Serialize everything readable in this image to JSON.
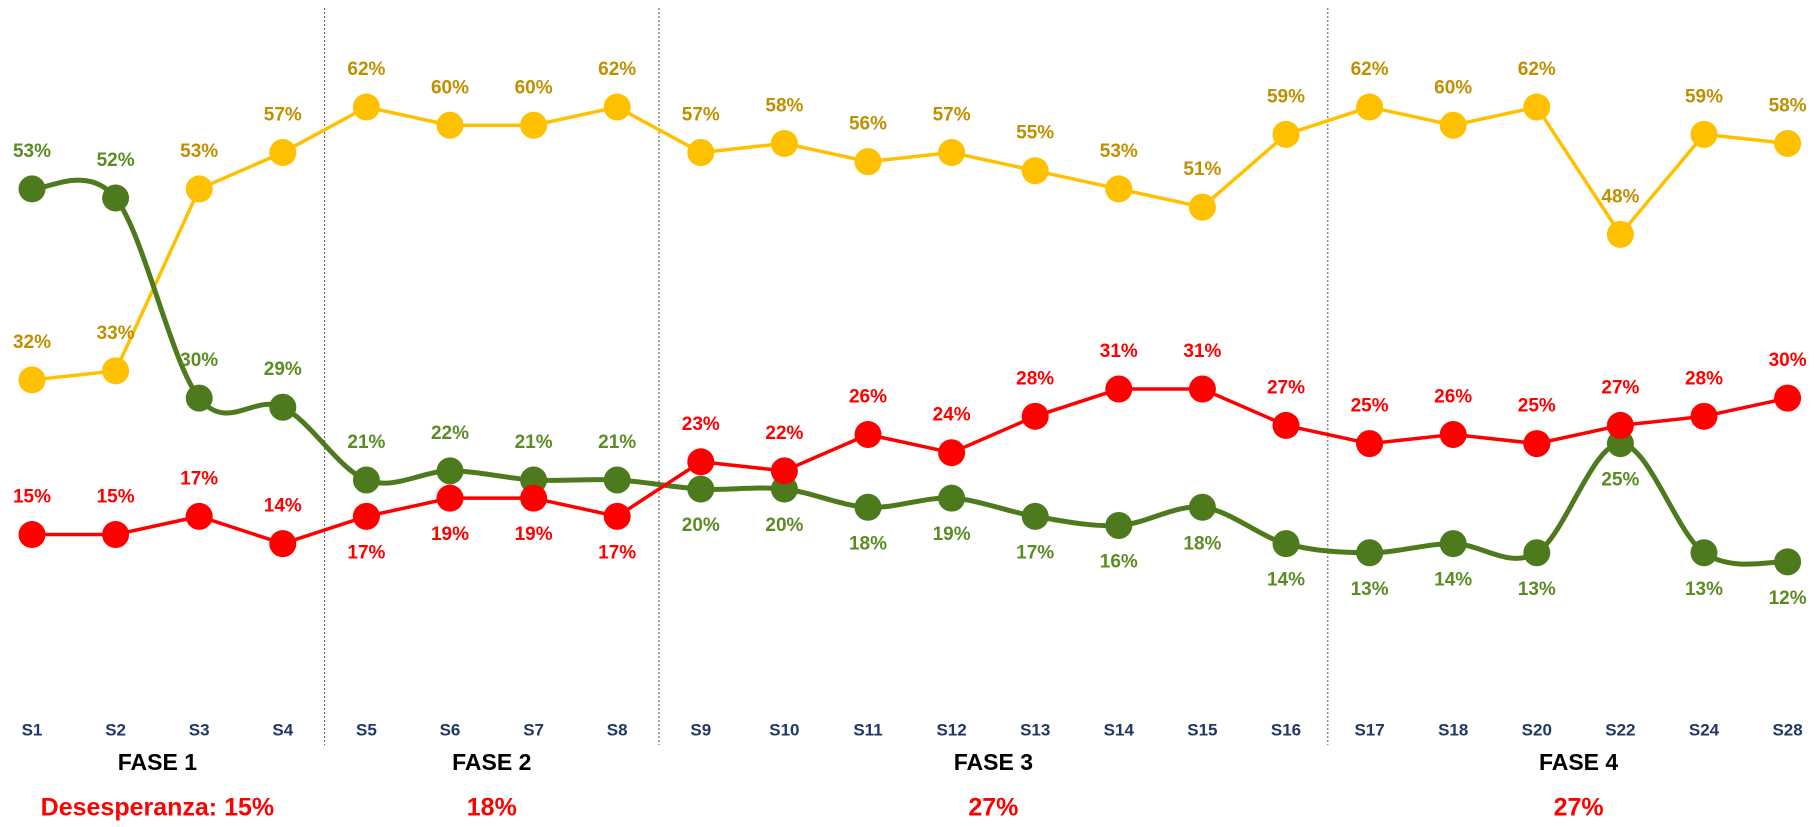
{
  "chart_data": {
    "type": "line",
    "ylim": [
      0,
      73
    ],
    "phases": [
      {
        "label": "FASE 1",
        "note": "Desesperanza: 15%",
        "categories": [
          "S1",
          "S2",
          "S3",
          "S4"
        ]
      },
      {
        "label": "FASE 2",
        "note": "18%",
        "categories": [
          "S5",
          "S6",
          "S7",
          "S8"
        ]
      },
      {
        "label": "FASE 3",
        "note": "27%",
        "categories": [
          "S9",
          "S10",
          "S11",
          "S12",
          "S13",
          "S14",
          "S15",
          "S16"
        ]
      },
      {
        "label": "FASE 4",
        "note": "27%",
        "categories": [
          "S17",
          "S18",
          "S20",
          "S22",
          "S24",
          "S28"
        ]
      }
    ],
    "series": [
      {
        "color": "#ffc000",
        "label_color": "#bf8f00",
        "smooth": false,
        "values": [
          32,
          33,
          53,
          57,
          62,
          60,
          60,
          62,
          57,
          58,
          56,
          57,
          55,
          53,
          51,
          59,
          62,
          60,
          62,
          48,
          59,
          58
        ],
        "value_labels": [
          "32%",
          "33%",
          "53%",
          "57%",
          "62%",
          "60%",
          "60%",
          "62%",
          "57%",
          "58%",
          "56%",
          "57%",
          "55%",
          "53%",
          "51%",
          "59%",
          "62%",
          "60%",
          "62%",
          "48%",
          "59%",
          "58%"
        ]
      },
      {
        "color": "#4e7a1e",
        "label_color": "#5b8c23",
        "smooth": true,
        "values": [
          53,
          52,
          30,
          29,
          21,
          22,
          21,
          21,
          20,
          20,
          18,
          19,
          17,
          16,
          18,
          14,
          13,
          14,
          13,
          25,
          13,
          12
        ],
        "value_labels": [
          "53%",
          "52%",
          "30%",
          "29%",
          "21%",
          "22%",
          "21%",
          "21%",
          "20%",
          "20%",
          "18%",
          "19%",
          "17%",
          "16%",
          "18%",
          "14%",
          "13%",
          "14%",
          "13%",
          "25%",
          "13%",
          "12%"
        ]
      },
      {
        "color": "#ff0000",
        "label_color": "#ff0000",
        "smooth": false,
        "values": [
          15,
          15,
          17,
          14,
          17,
          19,
          19,
          17,
          23,
          22,
          26,
          24,
          28,
          31,
          31,
          27,
          25,
          26,
          25,
          27,
          28,
          30
        ],
        "value_labels": [
          "15%",
          "15%",
          "17%",
          "14%",
          "17%",
          "19%",
          "19%",
          "17%",
          "23%",
          "22%",
          "26%",
          "24%",
          "28%",
          "31%",
          "31%",
          "27%",
          "25%",
          "26%",
          "25%",
          "27%",
          "28%",
          "30%"
        ]
      }
    ]
  }
}
